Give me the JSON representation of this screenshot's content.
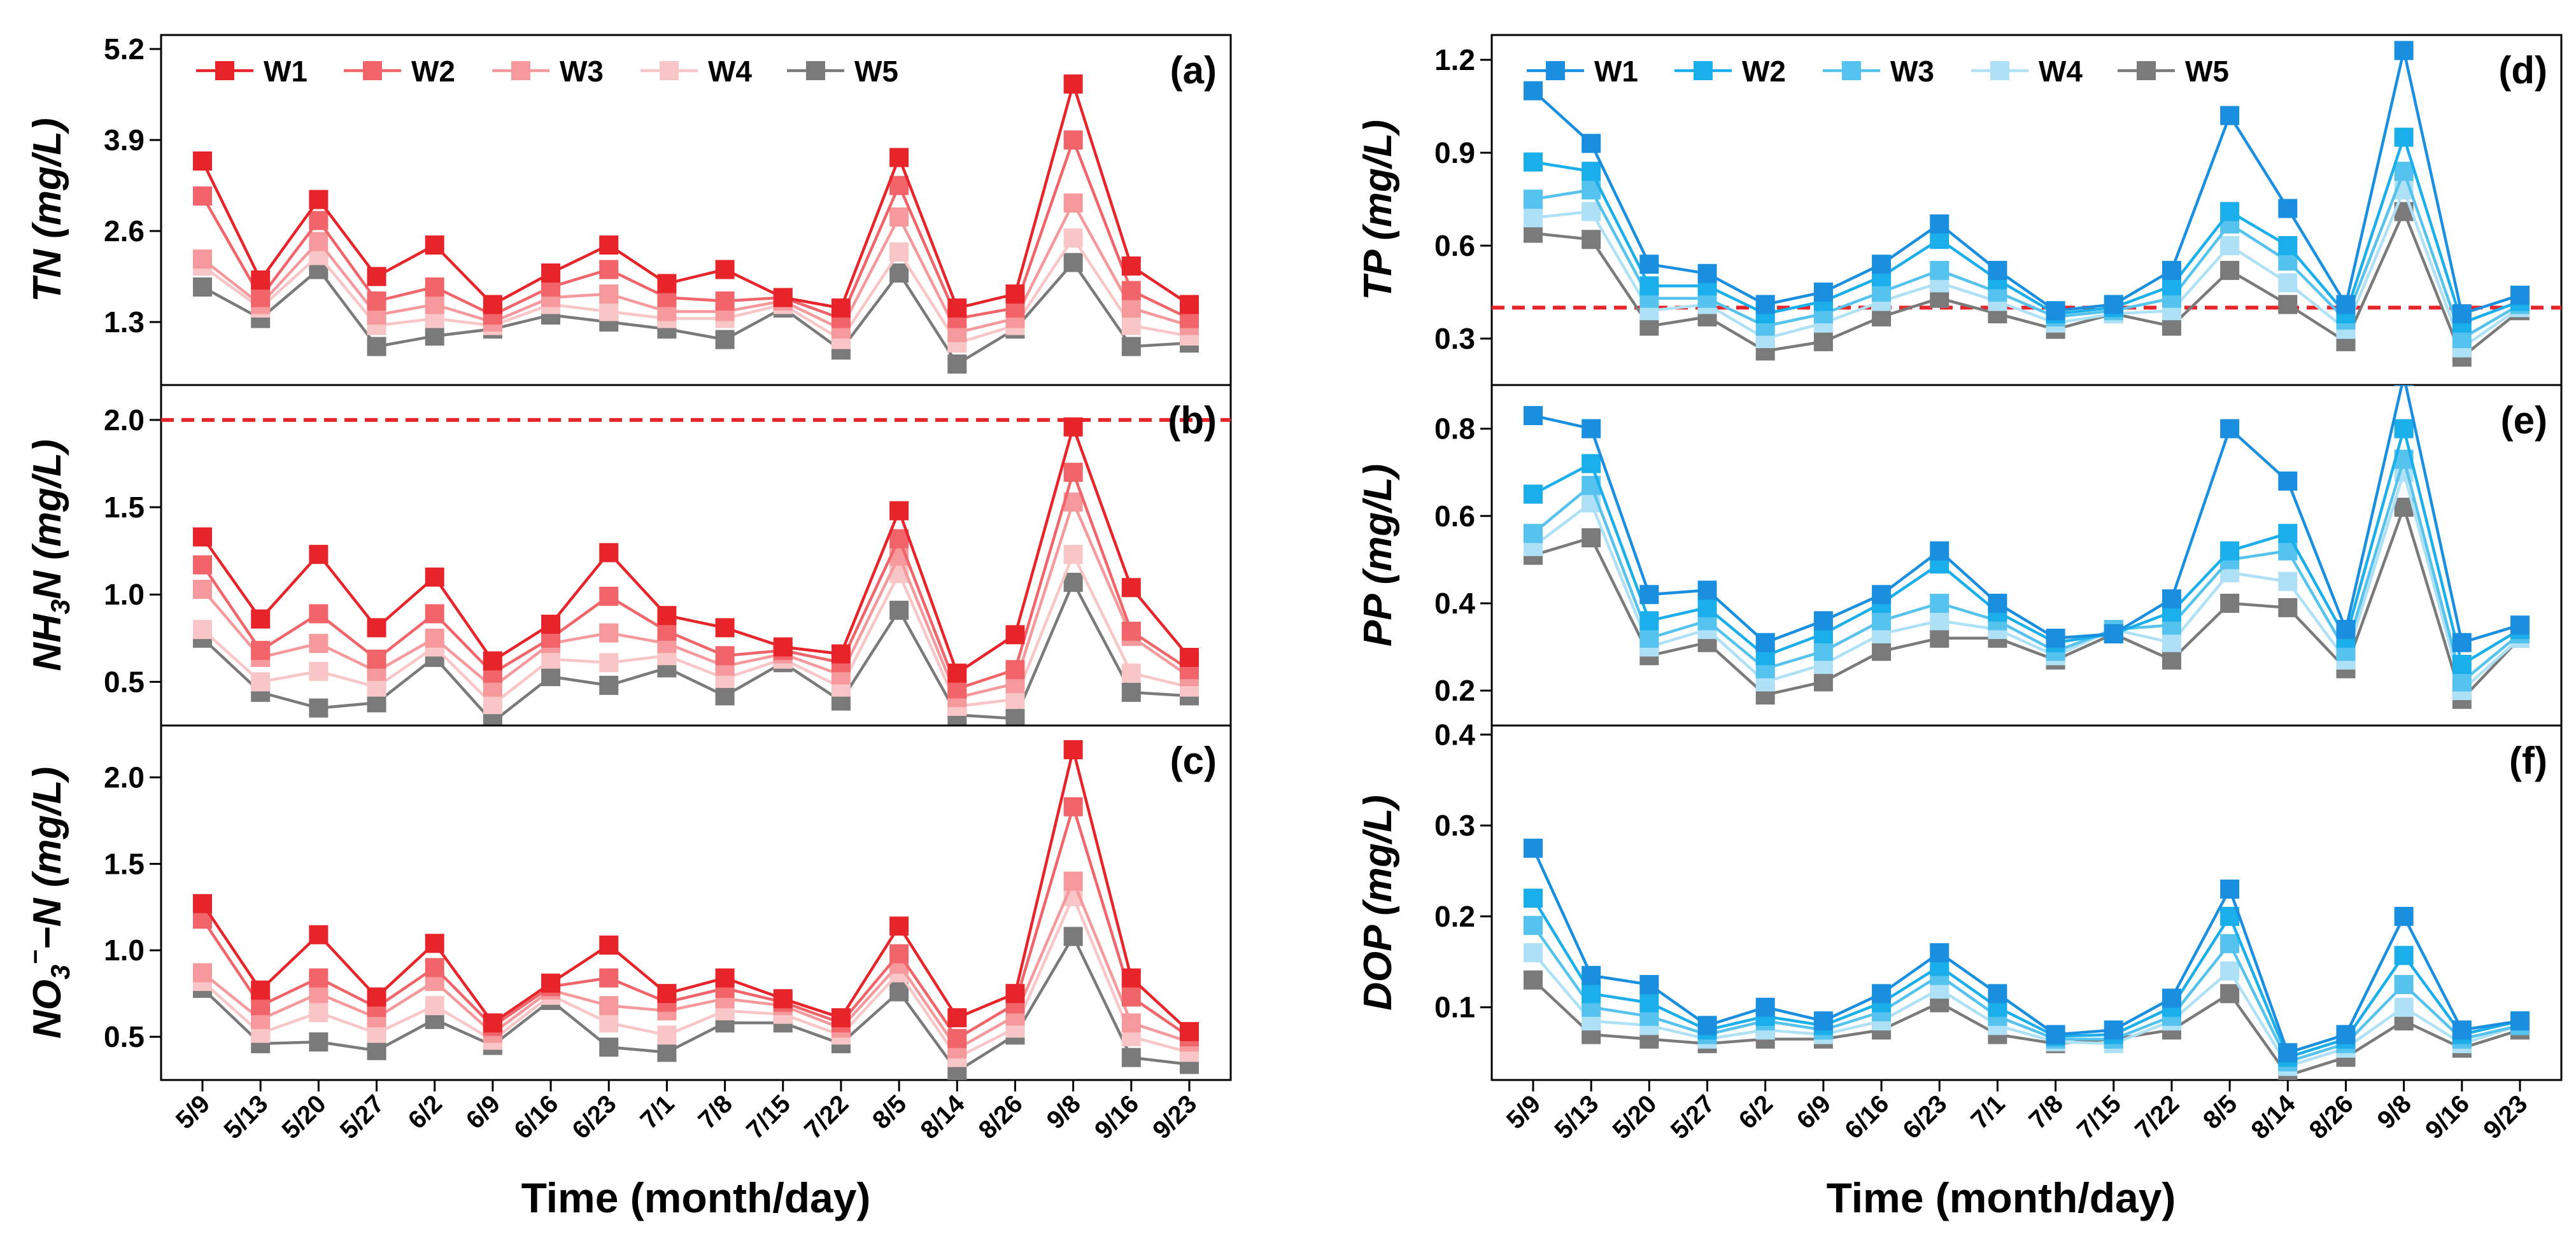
{
  "figure": {
    "xlabel": "Time (month/day)"
  },
  "chart_data": [
    {
      "panel": "(a)",
      "type": "line",
      "ylabel": "TN (mg/L)",
      "ylim": [
        0.4,
        5.4
      ],
      "yticks": [
        "1.3",
        "2.6",
        "3.9",
        "5.2"
      ],
      "categories": [
        "5/9",
        "5/13",
        "5/20",
        "5/27",
        "6/2",
        "6/9",
        "6/16",
        "6/23",
        "7/1",
        "7/8",
        "7/15",
        "7/22",
        "8/5",
        "8/14",
        "8/26",
        "9/8",
        "9/16",
        "9/23"
      ],
      "legend": [
        "W1",
        "W2",
        "W3",
        "W4",
        "W5"
      ],
      "colors": [
        "#e8242b",
        "#f0646a",
        "#f5999c",
        "#f9c6c8",
        "#7a7a7a"
      ],
      "series": [
        {
          "name": "W1",
          "values": [
            3.6,
            1.9,
            3.05,
            1.95,
            2.4,
            1.55,
            2.0,
            2.4,
            1.85,
            2.05,
            1.65,
            1.5,
            3.65,
            1.5,
            1.7,
            4.7,
            2.1,
            1.55
          ]
        },
        {
          "name": "W2",
          "values": [
            3.1,
            1.65,
            2.75,
            1.6,
            1.8,
            1.4,
            1.8,
            2.05,
            1.65,
            1.6,
            1.65,
            1.35,
            3.25,
            1.35,
            1.5,
            3.9,
            1.75,
            1.35
          ]
        },
        {
          "name": "W3",
          "values": [
            2.2,
            1.55,
            2.45,
            1.4,
            1.55,
            1.3,
            1.65,
            1.7,
            1.45,
            1.45,
            1.6,
            1.2,
            2.8,
            1.15,
            1.35,
            3.0,
            1.5,
            1.25
          ]
        },
        {
          "name": "W4",
          "values": [
            2.1,
            1.5,
            2.25,
            1.25,
            1.35,
            1.25,
            1.55,
            1.45,
            1.35,
            1.35,
            1.55,
            1.05,
            2.3,
            1.0,
            1.25,
            2.5,
            1.25,
            1.1
          ]
        },
        {
          "name": "W5",
          "values": [
            1.8,
            1.35,
            2.05,
            0.95,
            1.1,
            1.2,
            1.4,
            1.3,
            1.2,
            1.05,
            1.5,
            0.9,
            2.0,
            0.7,
            1.2,
            2.15,
            0.95,
            1.0
          ]
        }
      ]
    },
    {
      "panel": "(b)",
      "type": "line",
      "ylabel": "NH3N (mg/L)",
      "ylabel_main": "NH",
      "ylabel_sub": "3",
      "ylabel_rest": "N (mg/L)",
      "ylim": [
        0.25,
        2.2
      ],
      "yticks": [
        "0.5",
        "1.0",
        "1.5",
        "2.0"
      ],
      "reference_line": 2.0,
      "categories": [
        "5/9",
        "5/13",
        "5/20",
        "5/27",
        "6/2",
        "6/9",
        "6/16",
        "6/23",
        "7/1",
        "7/8",
        "7/15",
        "7/22",
        "8/5",
        "8/14",
        "8/26",
        "9/8",
        "9/16",
        "9/23"
      ],
      "series": [
        {
          "name": "W1",
          "values": [
            1.33,
            0.86,
            1.23,
            0.81,
            1.1,
            0.62,
            0.83,
            1.24,
            0.88,
            0.81,
            0.7,
            0.66,
            1.48,
            0.55,
            0.77,
            1.96,
            1.04,
            0.64
          ]
        },
        {
          "name": "W2",
          "values": [
            1.17,
            0.68,
            0.89,
            0.63,
            0.89,
            0.55,
            0.75,
            0.99,
            0.79,
            0.65,
            0.68,
            0.61,
            1.32,
            0.46,
            0.57,
            1.7,
            0.79,
            0.57
          ]
        },
        {
          "name": "W3",
          "values": [
            1.03,
            0.64,
            0.72,
            0.56,
            0.75,
            0.47,
            0.72,
            0.78,
            0.72,
            0.59,
            0.66,
            0.54,
            1.22,
            0.41,
            0.49,
            1.53,
            0.76,
            0.53
          ]
        },
        {
          "name": "W4",
          "values": [
            0.8,
            0.5,
            0.56,
            0.47,
            0.7,
            0.37,
            0.63,
            0.61,
            0.65,
            0.52,
            0.63,
            0.47,
            1.12,
            0.36,
            0.4,
            1.23,
            0.55,
            0.47
          ]
        },
        {
          "name": "W5",
          "values": [
            0.75,
            0.44,
            0.35,
            0.38,
            0.64,
            0.27,
            0.53,
            0.48,
            0.58,
            0.42,
            0.61,
            0.39,
            0.91,
            0.31,
            0.29,
            1.07,
            0.44,
            0.42
          ]
        }
      ]
    },
    {
      "panel": "(c)",
      "type": "line",
      "ylabel": "NO3−−N (mg/L)",
      "ylabel_main": "NO",
      "ylabel_sub": "3",
      "ylabel_sup": "−",
      "ylabel_rest": "−N (mg/L)",
      "ylim": [
        0.25,
        2.3
      ],
      "yticks": [
        "0.5",
        "1.0",
        "1.5",
        "2.0"
      ],
      "categories": [
        "5/9",
        "5/13",
        "5/20",
        "5/27",
        "6/2",
        "6/9",
        "6/16",
        "6/23",
        "7/1",
        "7/8",
        "7/15",
        "7/22",
        "8/5",
        "8/14",
        "8/26",
        "9/8",
        "9/16",
        "9/23"
      ],
      "series": [
        {
          "name": "W1",
          "values": [
            1.27,
            0.77,
            1.09,
            0.73,
            1.04,
            0.58,
            0.81,
            1.03,
            0.75,
            0.84,
            0.72,
            0.61,
            1.14,
            0.61,
            0.75,
            2.16,
            0.84,
            0.53
          ]
        },
        {
          "name": "W2",
          "values": [
            1.18,
            0.68,
            0.84,
            0.67,
            0.9,
            0.56,
            0.79,
            0.84,
            0.7,
            0.78,
            0.7,
            0.58,
            0.98,
            0.49,
            0.69,
            1.83,
            0.73,
            0.5
          ]
        },
        {
          "name": "W3",
          "values": [
            0.87,
            0.6,
            0.75,
            0.61,
            0.82,
            0.52,
            0.77,
            0.68,
            0.65,
            0.72,
            0.68,
            0.55,
            0.92,
            0.43,
            0.62,
            1.4,
            0.58,
            0.47
          ]
        },
        {
          "name": "W4",
          "values": [
            0.82,
            0.52,
            0.64,
            0.52,
            0.68,
            0.48,
            0.74,
            0.58,
            0.51,
            0.65,
            0.63,
            0.51,
            0.87,
            0.38,
            0.55,
            1.31,
            0.5,
            0.41
          ]
        },
        {
          "name": "W5",
          "values": [
            0.78,
            0.46,
            0.47,
            0.42,
            0.6,
            0.45,
            0.71,
            0.44,
            0.41,
            0.58,
            0.58,
            0.46,
            0.76,
            0.3,
            0.51,
            1.08,
            0.38,
            0.34
          ]
        }
      ]
    },
    {
      "panel": "(d)",
      "type": "line",
      "ylabel": "TP (mg/L)",
      "ylim": [
        0.15,
        1.28
      ],
      "yticks": [
        "0.3",
        "0.6",
        "0.9",
        "1.2"
      ],
      "reference_line": 0.4,
      "categories": [
        "5/9",
        "5/13",
        "5/20",
        "5/27",
        "6/2",
        "6/9",
        "6/16",
        "6/23",
        "7/1",
        "7/8",
        "7/15",
        "7/22",
        "8/5",
        "8/14",
        "8/26",
        "9/8",
        "9/16",
        "9/23"
      ],
      "legend": [
        "W1",
        "W2",
        "W3",
        "W4",
        "W5"
      ],
      "colors": [
        "#1a8fe0",
        "#1aaeea",
        "#55c3ee",
        "#aee0f6",
        "#7a7a7a"
      ],
      "series": [
        {
          "name": "W1",
          "values": [
            1.1,
            0.93,
            0.54,
            0.51,
            0.41,
            0.45,
            0.54,
            0.67,
            0.52,
            0.39,
            0.41,
            0.52,
            1.02,
            0.72,
            0.41,
            1.23,
            0.38,
            0.44
          ]
        },
        {
          "name": "W2",
          "values": [
            0.87,
            0.84,
            0.47,
            0.47,
            0.38,
            0.42,
            0.5,
            0.62,
            0.49,
            0.38,
            0.4,
            0.47,
            0.71,
            0.6,
            0.38,
            0.95,
            0.35,
            0.42
          ]
        },
        {
          "name": "W3",
          "values": [
            0.75,
            0.78,
            0.43,
            0.43,
            0.34,
            0.38,
            0.45,
            0.52,
            0.45,
            0.37,
            0.39,
            0.43,
            0.67,
            0.55,
            0.36,
            0.84,
            0.3,
            0.41
          ]
        },
        {
          "name": "W4",
          "values": [
            0.69,
            0.71,
            0.39,
            0.41,
            0.3,
            0.35,
            0.42,
            0.48,
            0.42,
            0.35,
            0.38,
            0.39,
            0.6,
            0.48,
            0.33,
            0.78,
            0.27,
            0.4
          ]
        },
        {
          "name": "W5",
          "values": [
            0.64,
            0.62,
            0.34,
            0.37,
            0.26,
            0.29,
            0.37,
            0.43,
            0.38,
            0.33,
            0.38,
            0.34,
            0.52,
            0.41,
            0.29,
            0.71,
            0.24,
            0.39
          ]
        }
      ]
    },
    {
      "panel": "(e)",
      "type": "line",
      "ylabel": "PP (mg/L)",
      "ylim": [
        0.12,
        0.9
      ],
      "yticks": [
        "0.2",
        "0.4",
        "0.6",
        "0.8"
      ],
      "categories": [
        "5/9",
        "5/13",
        "5/20",
        "5/27",
        "6/2",
        "6/9",
        "6/16",
        "6/23",
        "7/1",
        "7/8",
        "7/15",
        "7/22",
        "8/5",
        "8/14",
        "8/26",
        "9/8",
        "9/16",
        "9/23"
      ],
      "series": [
        {
          "name": "W1",
          "values": [
            0.83,
            0.8,
            0.42,
            0.43,
            0.31,
            0.36,
            0.42,
            0.52,
            0.4,
            0.32,
            0.33,
            0.41,
            0.8,
            0.68,
            0.34,
            0.92,
            0.31,
            0.35
          ]
        },
        {
          "name": "W2",
          "values": [
            0.65,
            0.72,
            0.36,
            0.39,
            0.28,
            0.33,
            0.4,
            0.49,
            0.38,
            0.31,
            0.33,
            0.38,
            0.52,
            0.56,
            0.32,
            0.8,
            0.26,
            0.34
          ]
        },
        {
          "name": "W3",
          "values": [
            0.56,
            0.67,
            0.32,
            0.36,
            0.25,
            0.29,
            0.36,
            0.4,
            0.36,
            0.29,
            0.34,
            0.35,
            0.5,
            0.52,
            0.29,
            0.73,
            0.22,
            0.33
          ]
        },
        {
          "name": "W4",
          "values": [
            0.53,
            0.63,
            0.3,
            0.34,
            0.22,
            0.26,
            0.33,
            0.36,
            0.34,
            0.28,
            0.34,
            0.31,
            0.47,
            0.45,
            0.27,
            0.7,
            0.2,
            0.32
          ]
        },
        {
          "name": "W5",
          "values": [
            0.51,
            0.55,
            0.28,
            0.31,
            0.19,
            0.22,
            0.29,
            0.32,
            0.32,
            0.27,
            0.33,
            0.27,
            0.4,
            0.39,
            0.25,
            0.62,
            0.18,
            0.32
          ]
        }
      ]
    },
    {
      "panel": "(f)",
      "type": "line",
      "ylabel": "DOP (mg/L)",
      "ylim": [
        0.02,
        0.41
      ],
      "yticks": [
        "0.1",
        "0.2",
        "0.3",
        "0.4"
      ],
      "categories": [
        "5/9",
        "5/13",
        "5/20",
        "5/27",
        "6/2",
        "6/9",
        "6/16",
        "6/23",
        "7/1",
        "7/8",
        "7/15",
        "7/22",
        "8/5",
        "8/14",
        "8/26",
        "9/8",
        "9/16",
        "9/23"
      ],
      "series": [
        {
          "name": "W1",
          "values": [
            0.275,
            0.135,
            0.125,
            0.08,
            0.1,
            0.085,
            0.115,
            0.16,
            0.115,
            0.07,
            0.075,
            0.11,
            0.23,
            0.05,
            0.07,
            0.2,
            0.075,
            0.085
          ]
        },
        {
          "name": "W2",
          "values": [
            0.22,
            0.115,
            0.105,
            0.075,
            0.09,
            0.08,
            0.105,
            0.145,
            0.1,
            0.068,
            0.07,
            0.1,
            0.2,
            0.045,
            0.065,
            0.157,
            0.07,
            0.085
          ]
        },
        {
          "name": "W3",
          "values": [
            0.19,
            0.1,
            0.09,
            0.07,
            0.085,
            0.075,
            0.095,
            0.135,
            0.09,
            0.065,
            0.065,
            0.09,
            0.17,
            0.04,
            0.06,
            0.125,
            0.065,
            0.08
          ]
        },
        {
          "name": "W4",
          "values": [
            0.16,
            0.085,
            0.08,
            0.065,
            0.075,
            0.07,
            0.085,
            0.12,
            0.08,
            0.062,
            0.06,
            0.085,
            0.14,
            0.035,
            0.055,
            0.1,
            0.06,
            0.08
          ]
        },
        {
          "name": "W5",
          "values": [
            0.13,
            0.07,
            0.065,
            0.06,
            0.065,
            0.065,
            0.075,
            0.105,
            0.07,
            0.06,
            0.065,
            0.075,
            0.115,
            0.025,
            0.045,
            0.085,
            0.055,
            0.075
          ]
        }
      ]
    }
  ]
}
